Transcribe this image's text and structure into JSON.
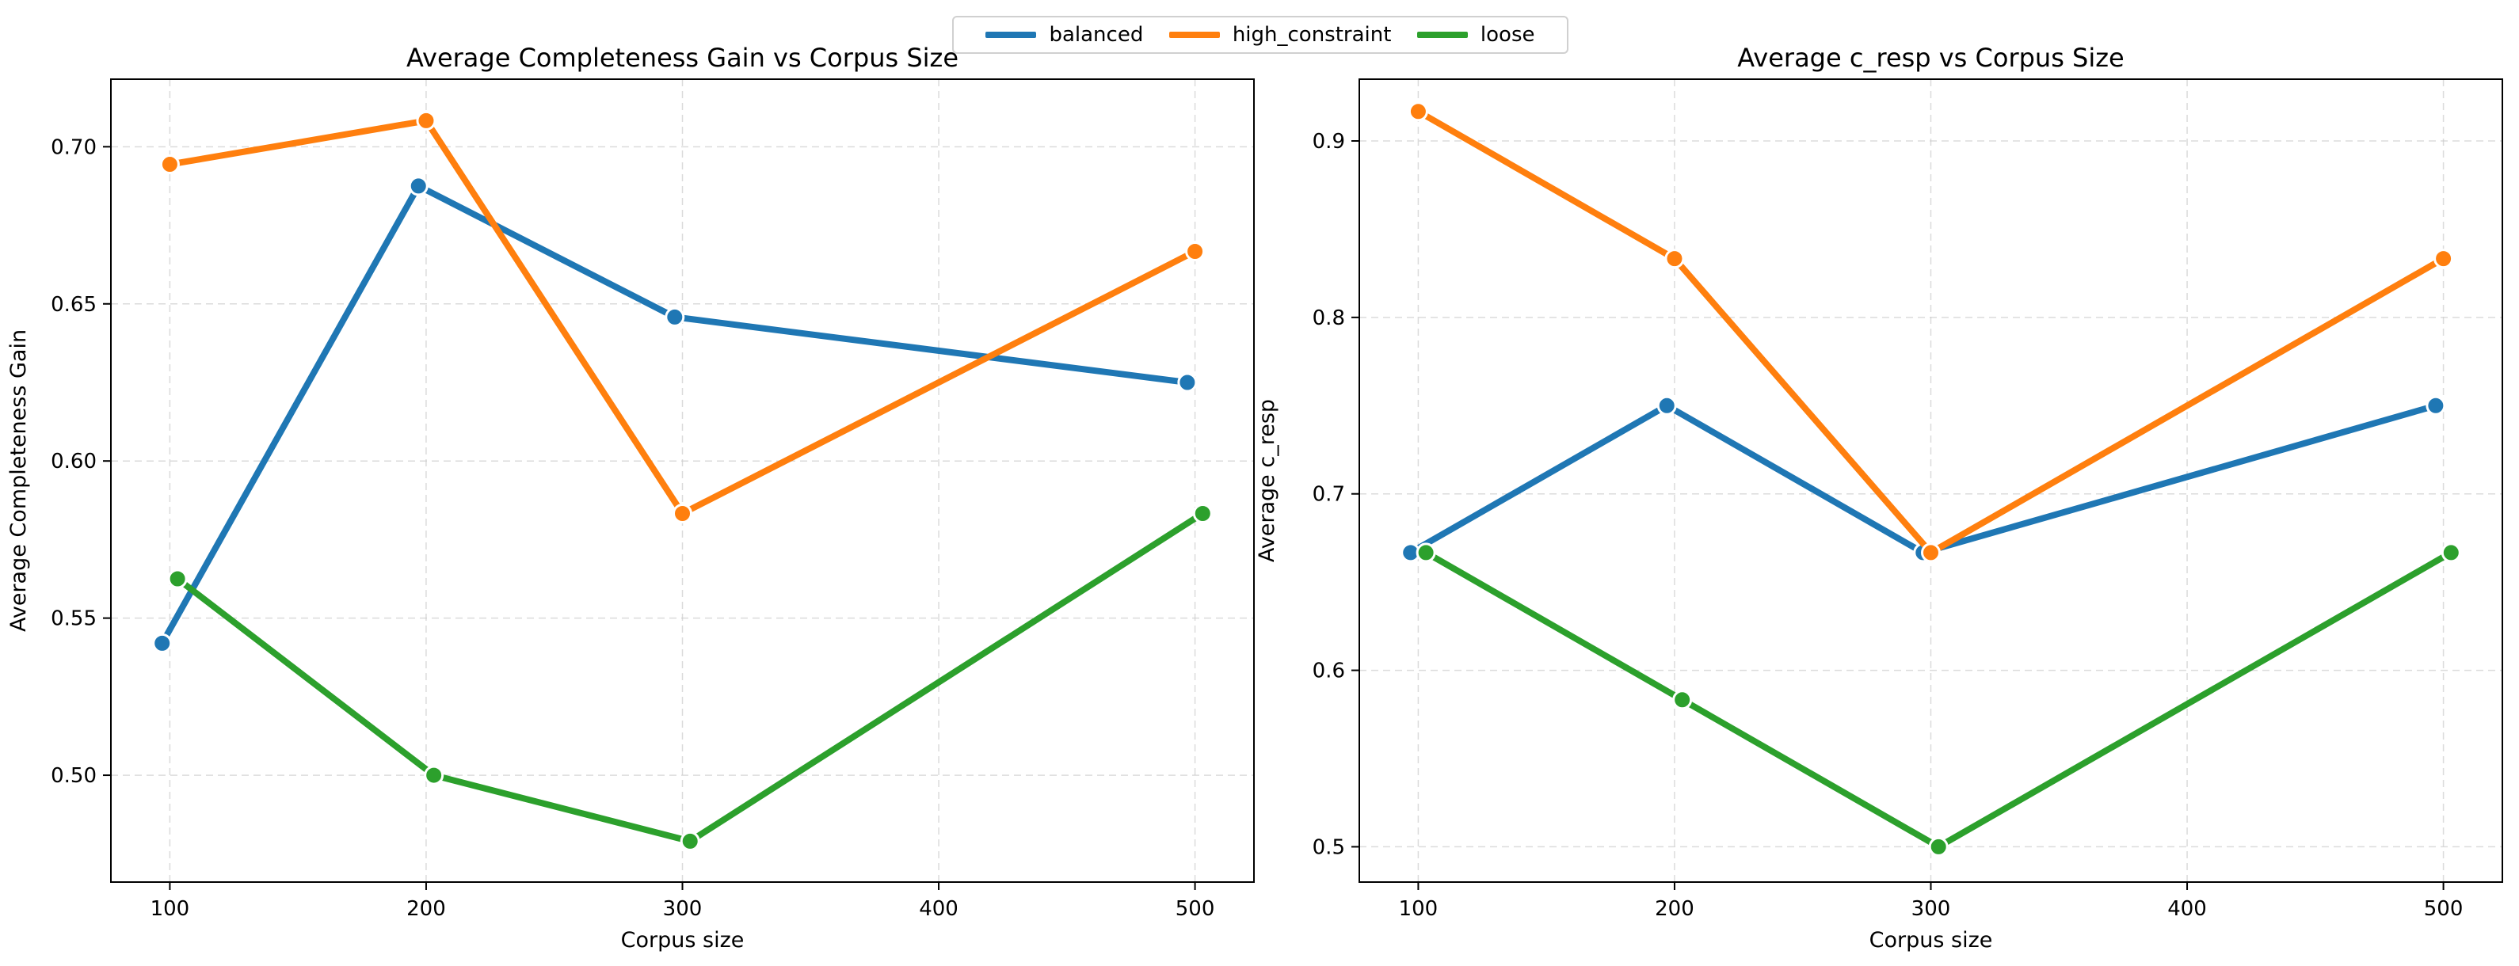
{
  "legend": {
    "placement": "top-center",
    "items": [
      {
        "name": "balanced",
        "color": "#1f77b4"
      },
      {
        "name": "high_constraint",
        "color": "#ff7f0e"
      },
      {
        "name": "loose",
        "color": "#2ca02c"
      }
    ]
  },
  "chart_data": [
    {
      "type": "line",
      "title": "Average Completeness Gain vs Corpus Size",
      "xlabel": "Corpus size",
      "ylabel": "Average Completeness Gain",
      "xlim": [
        77,
        523
      ],
      "ylim": [
        0.466,
        0.7215
      ],
      "xticks": [
        100,
        200,
        300,
        400,
        500
      ],
      "yticks": [
        0.5,
        0.55,
        0.6,
        0.65,
        0.7
      ],
      "ytick_labels": [
        "0.50",
        "0.55",
        "0.60",
        "0.65",
        "0.70"
      ],
      "grid": true,
      "series": [
        {
          "name": "balanced",
          "color": "#1f77b4",
          "x": [
            97,
            197,
            297,
            497
          ],
          "y": [
            0.542,
            0.6875,
            0.6458,
            0.625
          ]
        },
        {
          "name": "high_constraint",
          "color": "#ff7f0e",
          "x": [
            100,
            200,
            300,
            500
          ],
          "y": [
            0.6944,
            0.7083,
            0.5833,
            0.6667
          ]
        },
        {
          "name": "loose",
          "color": "#2ca02c",
          "x": [
            103,
            203,
            303,
            503
          ],
          "y": [
            0.5625,
            0.5,
            0.479,
            0.5833
          ]
        }
      ]
    },
    {
      "type": "line",
      "title": "Average c_resp vs Corpus Size",
      "xlabel": "Corpus size",
      "ylabel": "Average c_resp",
      "xlim": [
        77,
        523
      ],
      "ylim": [
        0.48,
        0.935
      ],
      "xticks": [
        100,
        200,
        300,
        400,
        500
      ],
      "yticks": [
        0.5,
        0.6,
        0.7,
        0.8,
        0.9
      ],
      "ytick_labels": [
        "0.5",
        "0.6",
        "0.7",
        "0.8",
        "0.9"
      ],
      "grid": true,
      "series": [
        {
          "name": "balanced",
          "color": "#1f77b4",
          "x": [
            97,
            197,
            297,
            497
          ],
          "y": [
            0.6667,
            0.75,
            0.6667,
            0.75
          ]
        },
        {
          "name": "high_constraint",
          "color": "#ff7f0e",
          "x": [
            100,
            200,
            300,
            500
          ],
          "y": [
            0.9167,
            0.8333,
            0.6667,
            0.8333
          ]
        },
        {
          "name": "loose",
          "color": "#2ca02c",
          "x": [
            103,
            203,
            303,
            503
          ],
          "y": [
            0.6667,
            0.5833,
            0.5,
            0.6667
          ]
        }
      ]
    }
  ]
}
